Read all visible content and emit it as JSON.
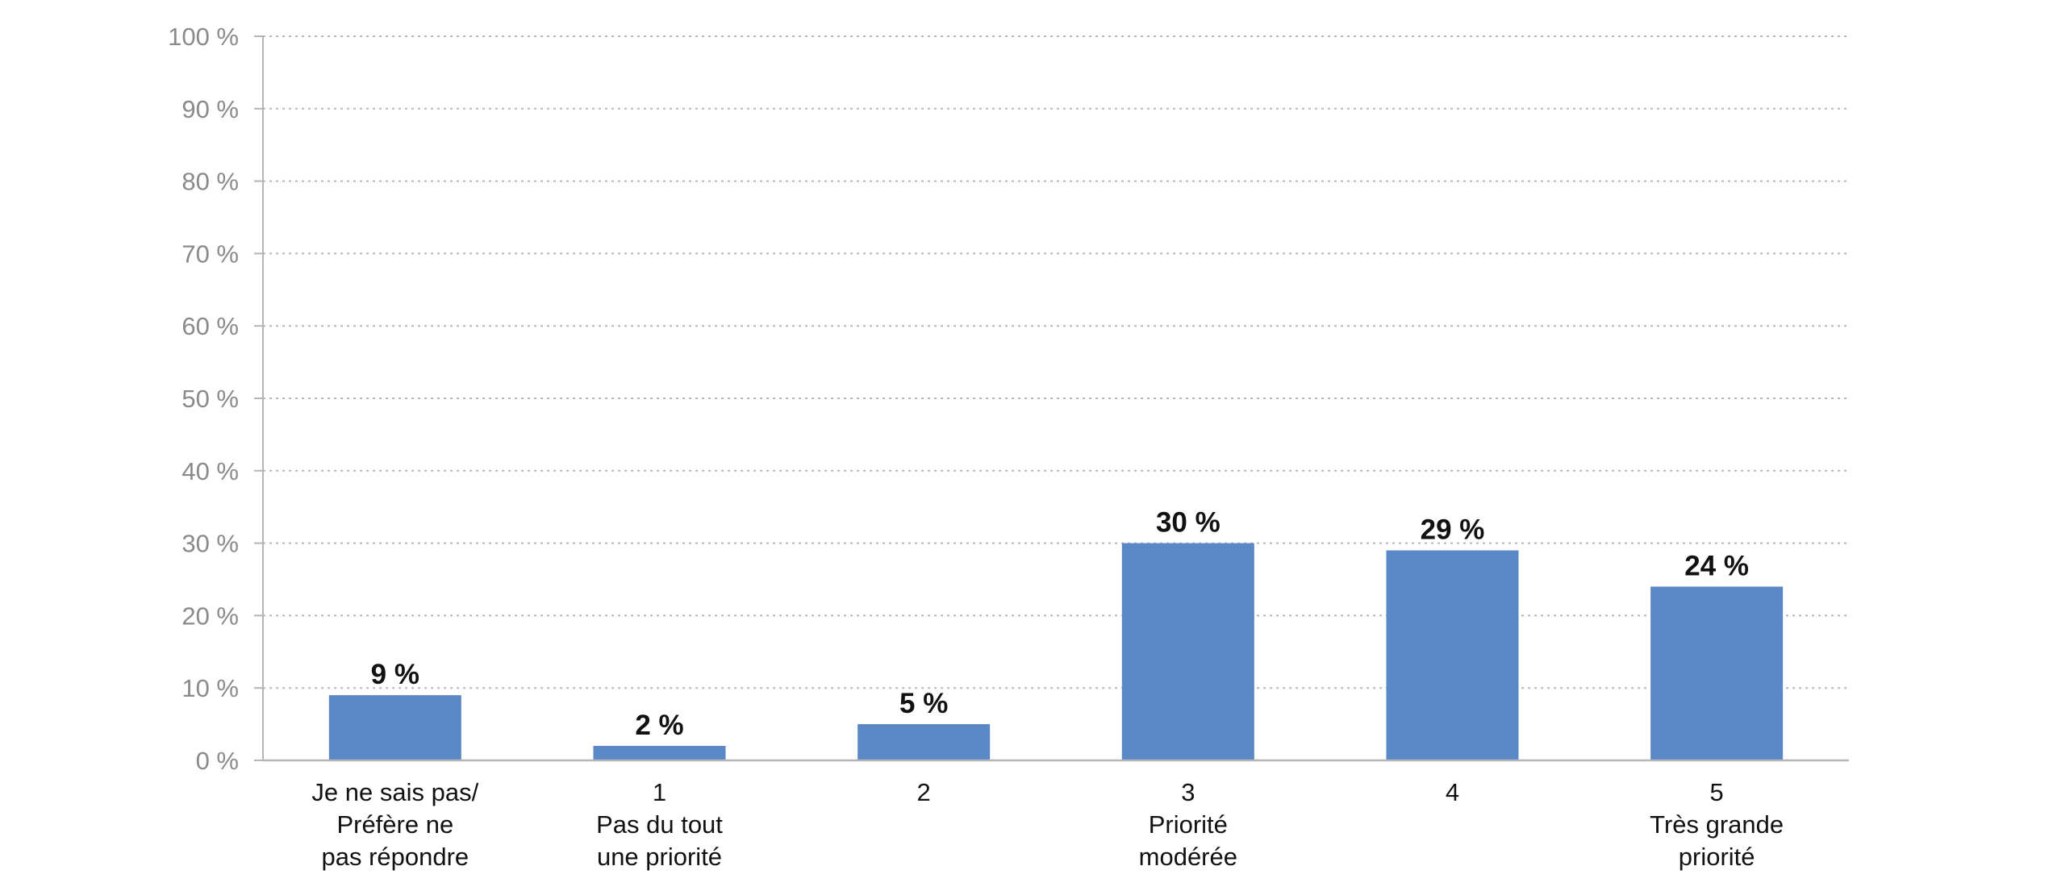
{
  "chart_data": {
    "type": "bar",
    "title": "",
    "xlabel": "",
    "ylabel": "",
    "ylim": [
      0,
      100
    ],
    "yticks": [
      0,
      10,
      20,
      30,
      40,
      50,
      60,
      70,
      80,
      90,
      100
    ],
    "ytick_labels": [
      "0 %",
      "10 %",
      "20 %",
      "30 %",
      "40 %",
      "50 %",
      "60 %",
      "70 %",
      "80 %",
      "90 %",
      "100 %"
    ],
    "grid": true,
    "legend": "none",
    "bar_color": "#5a87c5",
    "categories": [
      [
        "Je ne sais pas/",
        "Préfère ne",
        "pas répondre"
      ],
      [
        "1",
        "Pas du tout",
        "une priorité"
      ],
      [
        "2"
      ],
      [
        "3",
        "Priorité",
        "modérée"
      ],
      [
        "4"
      ],
      [
        "5",
        "Très grande",
        "priorité"
      ]
    ],
    "values": [
      9,
      2,
      5,
      30,
      29,
      24
    ],
    "data_labels": [
      "9 %",
      "2 %",
      "5 %",
      "30 %",
      "29 %",
      "24 %"
    ]
  }
}
